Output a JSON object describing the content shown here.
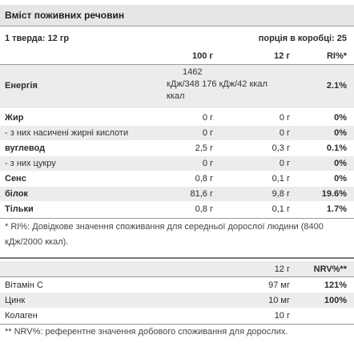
{
  "title": "Вміст поживних речовин",
  "serving": {
    "size_label": "1 тверда: 12 гр",
    "per_box_label": "порція в коробці: 25"
  },
  "table1": {
    "headers": {
      "per100": "100 г",
      "per12": "12 г",
      "ri": "RI%*"
    },
    "energy": {
      "label": "Енергія",
      "line1": "1462",
      "line2": "кДж/348 176 кДж/42 ккал",
      "line3": "ккал",
      "ri": "2.1%"
    },
    "rows": [
      {
        "label": "Жир",
        "per100": "0 г",
        "per12": "0 г",
        "ri": "0%"
      },
      {
        "label": "- з них насичені жирні кислоти",
        "per100": "0 г",
        "per12": "0 г",
        "ri": "0%"
      },
      {
        "label": "вуглевод",
        "per100": "2,5 г",
        "per12": "0,3 г",
        "ri": "0.1%"
      },
      {
        "label": "- з них цукру",
        "per100": "0 г",
        "per12": "0 г",
        "ri": "0%"
      },
      {
        "label": "Сенс",
        "per100": "0,8 г",
        "per12": "0,1 г",
        "ri": "0%"
      },
      {
        "label": "білок",
        "per100": "81,6 г",
        "per12": "9,8 г",
        "ri": "19.6%"
      },
      {
        "label": "Тільки",
        "per100": "0,8 г",
        "per12": "0,1 г",
        "ri": "1.7%"
      }
    ],
    "footnote": "* RI%: Довідкове значення споживання для середньої дорослої людини (8400 кДж/2000 ккал)."
  },
  "table2": {
    "headers": {
      "per12": "12 г",
      "nrv": "NRV%**"
    },
    "rows": [
      {
        "label": "Вітамін С",
        "per12": "97 мг",
        "nrv": "121%"
      },
      {
        "label": "Цинк",
        "per12": "10 мг",
        "nrv": "100%"
      },
      {
        "label": "Колаген",
        "per12": "10 г",
        "nrv": ""
      }
    ],
    "footnote": "** NRV%: референтне значення добового споживання для дорослих."
  }
}
